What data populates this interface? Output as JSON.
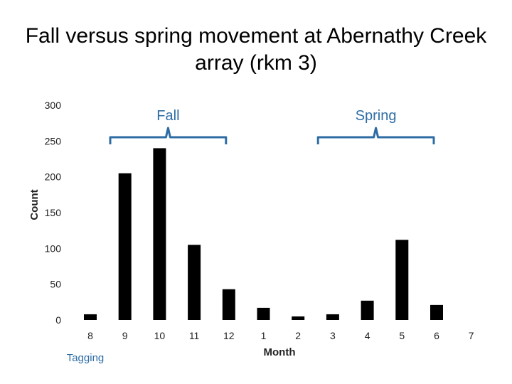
{
  "chart_data": {
    "type": "bar",
    "title_line1": "Fall versus spring movement at Abernathy Creek",
    "title_line2": "array (rkm 3)",
    "xlabel": "Month",
    "ylabel": "Count",
    "ylim": [
      0,
      300
    ],
    "yticks": [
      0,
      50,
      100,
      150,
      200,
      250,
      300
    ],
    "categories": [
      "8",
      "9",
      "10",
      "11",
      "12",
      "1",
      "2",
      "3",
      "4",
      "5",
      "6",
      "7"
    ],
    "values": [
      8,
      205,
      240,
      105,
      43,
      17,
      5,
      8,
      27,
      112,
      21,
      0
    ],
    "grid": false,
    "bar_color": "#000000",
    "annotations": {
      "fall_label": "Fall",
      "spring_label": "Spring",
      "tagging_label": "Tagging",
      "fall_span": [
        "8",
        "12"
      ],
      "spring_span": [
        "2",
        "6"
      ],
      "annotation_color": "#2e6da4"
    }
  }
}
